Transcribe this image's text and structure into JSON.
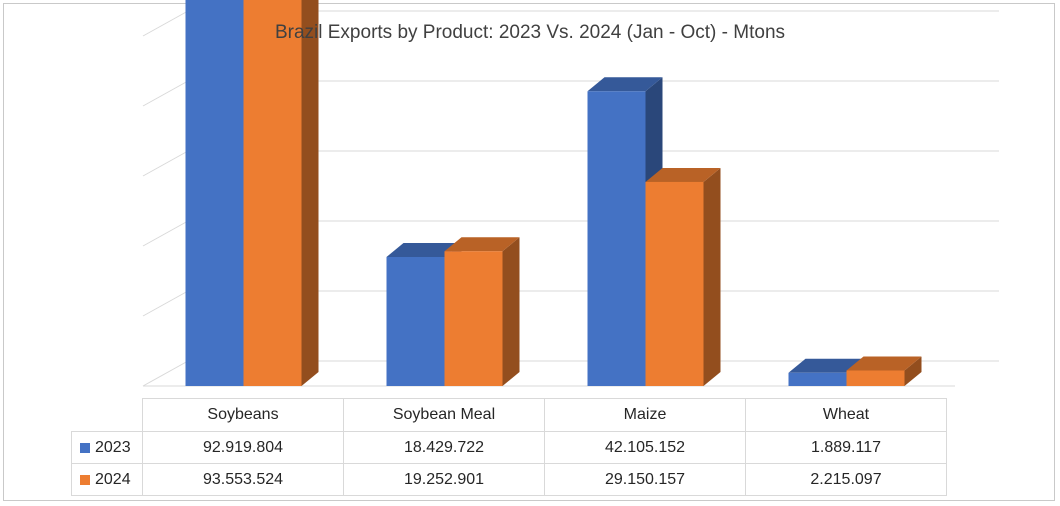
{
  "chart_data": {
    "type": "bar",
    "title": "Brazil Exports by Product: 2023 Vs. 2024 (Jan - Oct) - Mtons",
    "categories": [
      "Soybeans",
      "Soybean Meal",
      "Maize",
      "Wheat"
    ],
    "series": [
      {
        "name": "2023",
        "color": "#4472c4",
        "values": [
          92919804,
          18429722,
          42105152,
          1889117
        ],
        "labels": [
          "92.919.804",
          "18.429.722",
          "42.105.152",
          "1.889.117"
        ]
      },
      {
        "name": "2024",
        "color": "#ed7d31",
        "values": [
          93553524,
          19252901,
          29150157,
          2215097
        ],
        "labels": [
          "93.553.524",
          "19.252.901",
          "29.150.157",
          "2.215.097"
        ]
      }
    ],
    "ylim": [
      0,
      100000000
    ],
    "grid": true,
    "legend": "data-table",
    "xlabel": "",
    "ylabel": ""
  }
}
